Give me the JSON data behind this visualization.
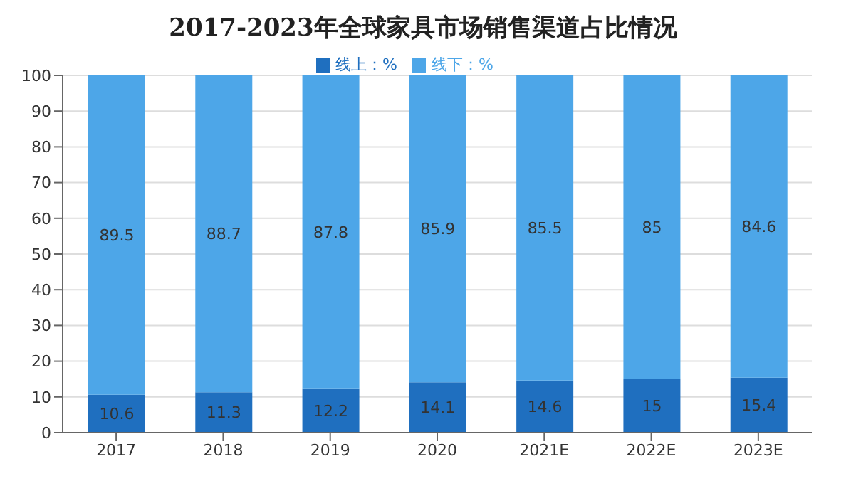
{
  "chart_data": {
    "type": "bar",
    "title": "2017-2023年全球家具市场销售渠道占比情况",
    "stacked": true,
    "categories": [
      "2017",
      "2018",
      "2019",
      "2020",
      "2021E",
      "2022E",
      "2023E"
    ],
    "series": [
      {
        "name": "线上：%",
        "color": "#1f6fbf",
        "values": [
          10.6,
          11.3,
          12.2,
          14.1,
          14.6,
          15,
          15.4
        ]
      },
      {
        "name": "线下：%",
        "color": "#4da6e8",
        "values": [
          89.5,
          88.7,
          87.8,
          85.9,
          85.5,
          85,
          84.6
        ]
      }
    ],
    "ylim": [
      0,
      100
    ],
    "yticks": [
      0,
      10,
      20,
      30,
      40,
      50,
      60,
      70,
      80,
      90,
      100
    ],
    "grid": "y",
    "legend": "top",
    "data_labels": true
  }
}
